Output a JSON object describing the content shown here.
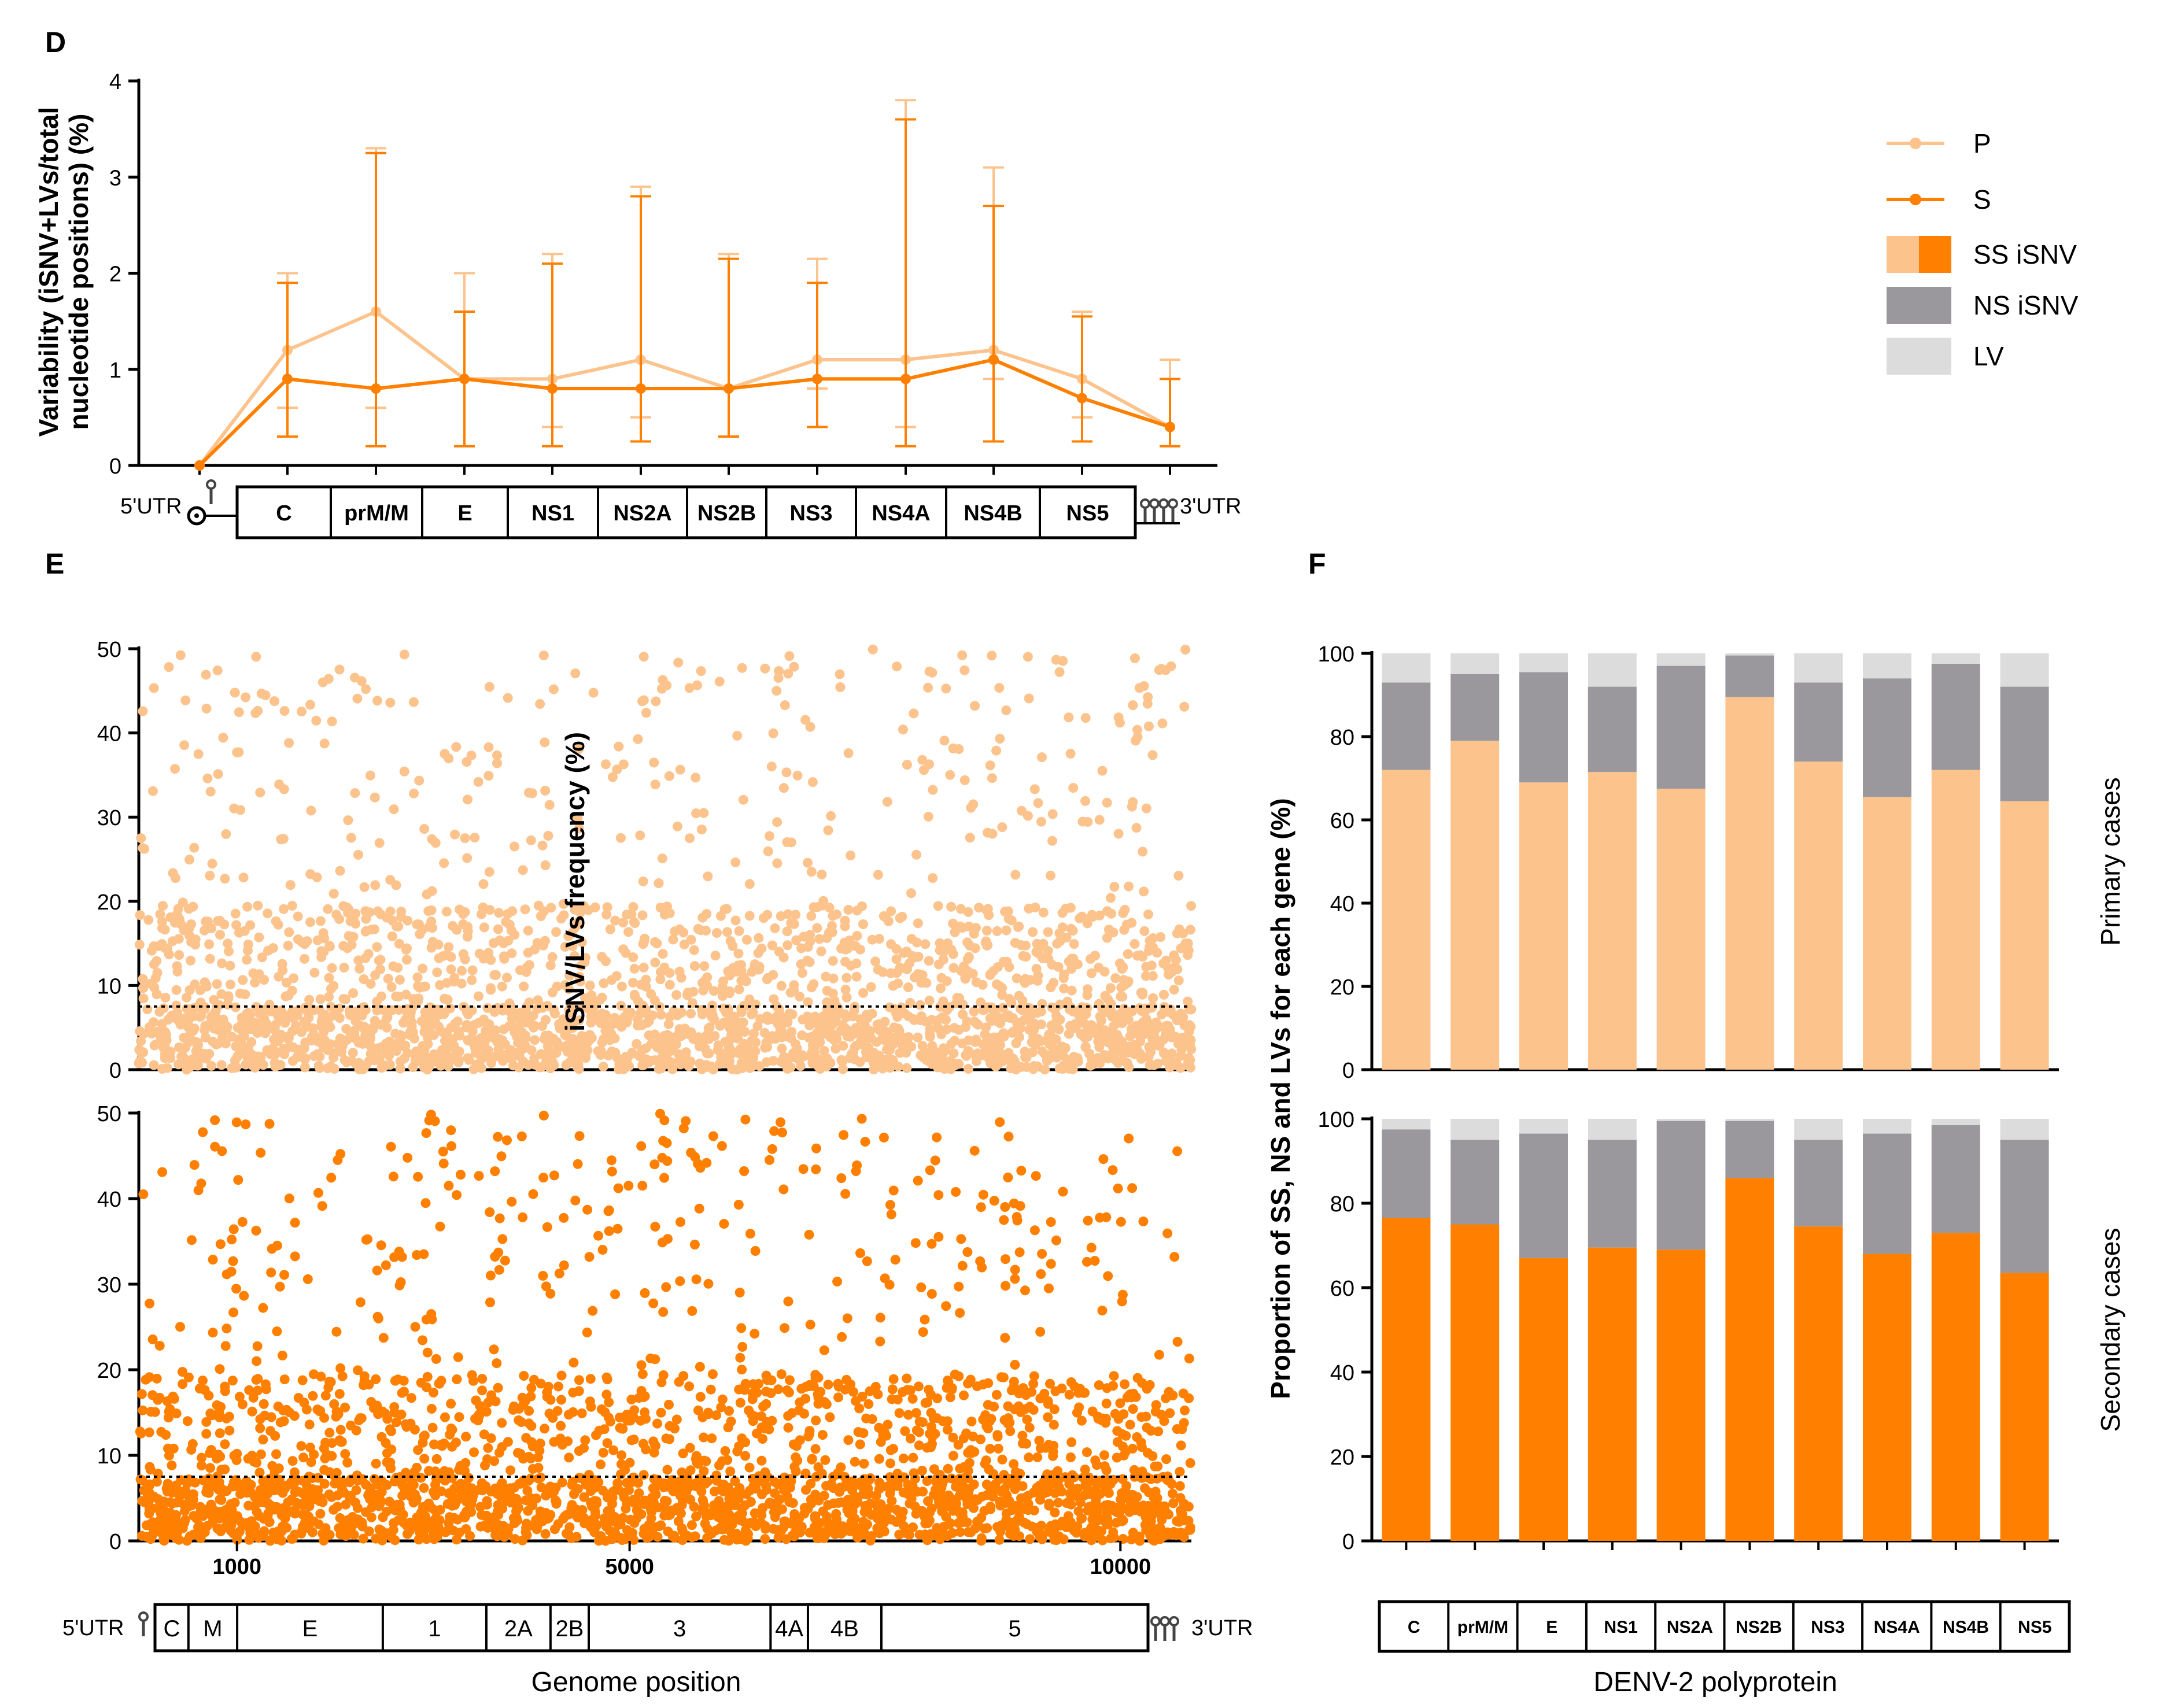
{
  "panels": {
    "d": "D",
    "e": "E",
    "f": "F"
  },
  "colors": {
    "primary": "#fcc38d",
    "secondary": "#ff8000",
    "ns": "#9a989d",
    "lv": "#dcdcdc"
  },
  "legend": {
    "p": "P",
    "s": "S",
    "ss": "SS iSNV",
    "ns": "NS iSNV",
    "lv": "LV"
  },
  "utr": {
    "five": "5'UTR",
    "three": "3'UTR"
  },
  "chart_data": [
    {
      "type": "line",
      "ylabel_line1": "Variability (iSNV+LVs/total",
      "ylabel_line2": "nucleotide positions) (%)",
      "ylim": [
        0,
        4
      ],
      "yticks": [
        "0",
        "1",
        "2",
        "3",
        "4"
      ],
      "categories": [
        "5'UTR",
        "C",
        "prM/M",
        "E",
        "NS1",
        "NS2A",
        "NS2B",
        "NS3",
        "NS4A",
        "NS4B",
        "NS5",
        "3'UTR"
      ],
      "series": [
        {
          "name": "P",
          "values": [
            0,
            1.2,
            1.6,
            0.9,
            0.9,
            1.1,
            0.8,
            1.1,
            1.1,
            1.2,
            0.9,
            0.4
          ],
          "err_low": [
            0,
            0.6,
            0.6,
            0.2,
            0.4,
            0.5,
            0.3,
            0.8,
            0.4,
            0.9,
            0.5,
            0.2
          ],
          "err_high": [
            0,
            2.0,
            3.3,
            2.0,
            2.2,
            2.9,
            2.2,
            2.15,
            3.8,
            3.1,
            1.6,
            1.1
          ]
        },
        {
          "name": "S",
          "values": [
            0,
            0.9,
            0.8,
            0.9,
            0.8,
            0.8,
            0.8,
            0.9,
            0.9,
            1.1,
            0.7,
            0.4
          ],
          "err_low": [
            0,
            0.3,
            0.2,
            0.2,
            0.2,
            0.25,
            0.3,
            0.4,
            0.2,
            0.25,
            0.25,
            0.2
          ],
          "err_high": [
            0,
            1.9,
            3.25,
            1.6,
            2.1,
            2.8,
            2.15,
            1.9,
            3.6,
            2.7,
            1.55,
            0.9
          ]
        }
      ],
      "genome_map": [
        "C",
        "prM/M",
        "E",
        "NS1",
        "NS2A",
        "NS2B",
        "NS3",
        "NS4A",
        "NS4B",
        "NS5"
      ]
    },
    {
      "type": "scatter",
      "ylabel": "iSNV/LVs frequency (%)",
      "xlabel": "Genome position",
      "ylim": [
        0,
        50
      ],
      "yticks": [
        "0",
        "10",
        "20",
        "30",
        "40",
        "50"
      ],
      "xlim": [
        0,
        10723
      ],
      "xticks": [
        {
          "value": 1000,
          "label": "1000"
        },
        {
          "value": 5000,
          "label": "5000"
        },
        {
          "value": 10000,
          "label": "10000"
        }
      ],
      "threshold": 7.5,
      "series": [
        {
          "name": "Primary",
          "n_points": 2600
        },
        {
          "name": "Secondary",
          "n_points": 2600
        }
      ],
      "genome_map": [
        {
          "label": "C",
          "start": 97,
          "end": 438
        },
        {
          "label": "M",
          "start": 438,
          "end": 935
        },
        {
          "label": "E",
          "start": 935,
          "end": 2420
        },
        {
          "label": "1",
          "start": 2420,
          "end": 3476
        },
        {
          "label": "2A",
          "start": 3476,
          "end": 4130
        },
        {
          "label": "2B",
          "start": 4130,
          "end": 4520
        },
        {
          "label": "3",
          "start": 4520,
          "end": 6374
        },
        {
          "label": "4A",
          "start": 6374,
          "end": 6755
        },
        {
          "label": "4B",
          "start": 6755,
          "end": 7504
        },
        {
          "label": "5",
          "start": 7504,
          "end": 10223
        }
      ]
    },
    {
      "type": "bar",
      "stacked": true,
      "ylabel": "Proportion of SS, NS and LVs for each gene (%)",
      "xlabel": "DENV-2 polyprotein",
      "ylim": [
        0,
        100
      ],
      "yticks": [
        "0",
        "20",
        "40",
        "60",
        "80",
        "100"
      ],
      "categories": [
        "C",
        "prM/M",
        "E",
        "NS1",
        "NS2A",
        "NS2B",
        "NS3",
        "NS4A",
        "NS4B",
        "NS5"
      ],
      "groups": [
        {
          "name": "Primary cases",
          "ss": [
            72,
            79,
            69,
            71.5,
            67.5,
            89.5,
            74,
            65.5,
            72,
            64.5
          ],
          "ns": [
            21,
            16,
            26.5,
            20.5,
            29.5,
            10,
            19,
            28.5,
            25.5,
            27.5
          ],
          "lv": [
            7,
            5,
            4.5,
            8,
            3,
            0.5,
            7,
            6,
            2.5,
            8
          ]
        },
        {
          "name": "Secondary cases",
          "ss": [
            76.5,
            75,
            67,
            69.5,
            69,
            86,
            74.5,
            68,
            73,
            63.5
          ],
          "ns": [
            21,
            20,
            29.5,
            25.5,
            30.5,
            13.5,
            20.5,
            28.5,
            25.5,
            31.5
          ],
          "lv": [
            2.5,
            5,
            3.5,
            5,
            0.5,
            0.5,
            5,
            3.5,
            1.5,
            5
          ]
        }
      ]
    }
  ]
}
